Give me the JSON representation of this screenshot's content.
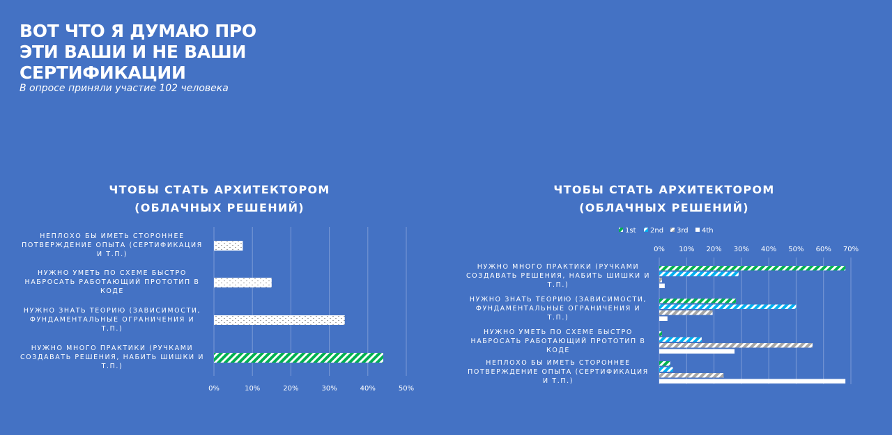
{
  "header": {
    "title_lines": [
      "ВОТ ЧТО Я ДУМАЮ ПРО",
      "ЭТИ ВАШИ И НЕ ВАШИ",
      "СЕРТИФИКАЦИИ"
    ],
    "subtitle": "В опросе приняли участие 102 человека"
  },
  "colors": {
    "background": "#4472C4",
    "green": "#00B050",
    "cyan": "#00B0F0",
    "gray": "#A6A6A6",
    "white": "#FFFFFF"
  },
  "chart_data": [
    {
      "type": "bar",
      "orientation": "horizontal",
      "title_lines": [
        "ЧТОБЫ СТАТЬ АРХИТЕКТОРОМ",
        "(ОБЛАЧНЫХ РЕШЕНИЙ)"
      ],
      "categories": [
        [
          "НЕПЛОХО БЫ ИМЕТЬ СТОРОННЕЕ",
          "ПОТВЕРЖДЕНИЕ ОПЫТА (СЕРТИФИКАЦИЯ",
          "И Т.П.)"
        ],
        [
          "НУЖНО УМЕТЬ ПО СХЕМЕ БЫСТРО",
          "НАБРОСАТЬ РАБОТАЮЩИЙ ПРОТОТИП В",
          "КОДЕ"
        ],
        [
          "НУЖНО ЗНАТЬ ТЕОРИЮ (ЗАВИСИМОСТИ,",
          "ФУНДАМЕНТАЛЬНЫЕ ОГРАНИЧЕНИЯ И",
          "Т.П.)"
        ],
        [
          "НУЖНО МНОГО ПРАКТИКИ (РУЧКАМИ",
          "СОЗДАВАТЬ РЕШЕНИЯ, НАБИТЬ ШИШКИ И",
          "Т.П.)"
        ]
      ],
      "values": [
        7.5,
        15,
        34,
        44
      ],
      "patterns": [
        "dots",
        "dots",
        "dots",
        "green-stripes"
      ],
      "xlim": [
        0,
        50
      ],
      "ticks": [
        "0%",
        "10%",
        "20%",
        "30%",
        "40%",
        "50%"
      ],
      "grid": true
    },
    {
      "type": "bar",
      "orientation": "horizontal-grouped",
      "title_lines": [
        "ЧТОБЫ СТАТЬ АРХИТЕКТОРОМ",
        "(ОБЛАЧНЫХ РЕШЕНИЙ)"
      ],
      "legend": [
        "1st",
        "2nd",
        "3rd",
        "4th"
      ],
      "legend_position": "top",
      "categories": [
        [
          "НУЖНО МНОГО ПРАКТИКИ (РУЧКАМИ",
          "СОЗДАВАТЬ РЕШЕНИЯ, НАБИТЬ ШИШКИ И",
          "Т.П.)"
        ],
        [
          "НУЖНО ЗНАТЬ ТЕОРИЮ (ЗАВИСИМОСТИ,",
          "ФУНДАМЕНТАЛЬНЫЕ ОГРАНИЧЕНИЯ И",
          "Т.П.)"
        ],
        [
          "НУЖНО УМЕТЬ ПО СХЕМЕ БЫСТРО",
          "НАБРОСАТЬ РАБОТАЮЩИЙ ПРОТОТИП В",
          "КОДЕ"
        ],
        [
          "НЕПЛОХО БЫ ИМЕТЬ СТОРОННЕЕ",
          "ПОТВЕРЖДЕНИЕ ОПЫТА (СЕРТИФИКАЦИЯ",
          "И Т.П.)"
        ]
      ],
      "series": [
        {
          "name": "1st",
          "values": [
            68,
            28,
            1,
            4
          ]
        },
        {
          "name": "2nd",
          "values": [
            29,
            50,
            15.5,
            5
          ]
        },
        {
          "name": "3rd",
          "values": [
            1,
            19.5,
            56,
            23.5
          ]
        },
        {
          "name": "4th",
          "values": [
            2,
            3,
            27.5,
            68
          ]
        }
      ],
      "xlim": [
        0,
        70
      ],
      "ticks": [
        "0%",
        "10%",
        "20%",
        "30%",
        "40%",
        "50%",
        "60%",
        "70%"
      ],
      "grid": true
    }
  ]
}
